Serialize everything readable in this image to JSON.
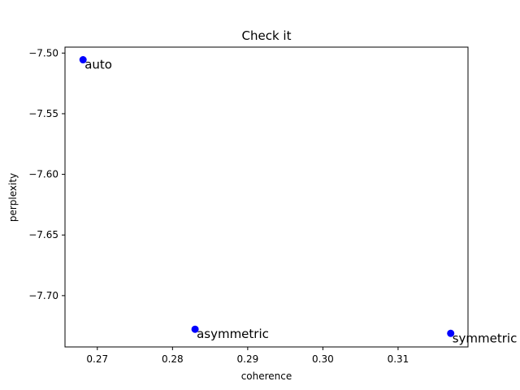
{
  "chart_data": {
    "type": "scatter",
    "title": "Check it",
    "xlabel": "coherence",
    "ylabel": "perplexity",
    "xlim": [
      0.2657,
      0.3193
    ],
    "ylim": [
      -7.7423,
      -7.4951
    ],
    "xticks": [
      0.27,
      0.28,
      0.29,
      0.3,
      0.31
    ],
    "xtick_labels": [
      "0.27",
      "0.28",
      "0.29",
      "0.30",
      "0.31"
    ],
    "yticks": [
      -7.5,
      -7.55,
      -7.6,
      -7.65,
      -7.7
    ],
    "ytick_labels": [
      "−7.50",
      "−7.55",
      "−7.60",
      "−7.65",
      "−7.70"
    ],
    "grid": false,
    "marker_color": "#0000ff",
    "points": [
      {
        "label": "auto",
        "x": 0.2681,
        "y": -7.5055
      },
      {
        "label": "asymmetric",
        "x": 0.283,
        "y": -7.7277
      },
      {
        "label": "symmetric",
        "x": 0.317,
        "y": -7.7311
      }
    ]
  }
}
